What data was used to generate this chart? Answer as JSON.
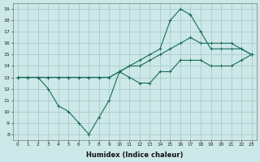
{
  "xlabel": "Humidex (Indice chaleur)",
  "ylabel": "",
  "x_ticks": [
    0,
    1,
    2,
    3,
    4,
    5,
    6,
    7,
    8,
    9,
    10,
    11,
    12,
    13,
    14,
    15,
    16,
    17,
    18,
    19,
    20,
    21,
    22,
    23
  ],
  "ylim": [
    7.5,
    19.5
  ],
  "xlim": [
    -0.5,
    23.5
  ],
  "bg_color": "#cce8e8",
  "grid_color": "#aacccc",
  "line_color": "#1a6b5a",
  "series": [
    {
      "x": [
        0,
        1,
        2,
        3,
        4,
        5,
        6,
        7,
        8,
        9,
        10,
        11,
        12,
        13,
        14,
        15,
        16,
        17,
        18,
        19,
        20,
        21,
        22,
        23
      ],
      "y": [
        13,
        13,
        13,
        12,
        10.5,
        10.0,
        9.0,
        8.0,
        9.5,
        11.0,
        13.5,
        13.0,
        12.5,
        12.5,
        13.5,
        13.5,
        14.5,
        14.5,
        14.5,
        14.0,
        14.0,
        14.0,
        14.5,
        15.0
      ]
    },
    {
      "x": [
        0,
        1,
        2,
        3,
        4,
        5,
        6,
        7,
        8,
        9,
        10,
        11,
        12,
        13,
        14,
        15,
        16,
        17,
        18,
        19,
        20,
        21,
        22,
        23
      ],
      "y": [
        13,
        13,
        13,
        13,
        13,
        13,
        13,
        13,
        13,
        13,
        13.5,
        14.0,
        14.0,
        14.5,
        15.0,
        15.5,
        16.0,
        16.5,
        16.0,
        16.0,
        16.0,
        16.0,
        15.5,
        15.0
      ]
    },
    {
      "x": [
        0,
        1,
        2,
        3,
        4,
        5,
        6,
        7,
        8,
        9,
        10,
        11,
        12,
        13,
        14,
        15,
        16,
        17,
        18,
        19,
        20,
        21,
        22,
        23
      ],
      "y": [
        13,
        13,
        13,
        13,
        13,
        13,
        13,
        13,
        13,
        13,
        13.5,
        14.0,
        14.5,
        15.0,
        15.5,
        18.0,
        19.0,
        18.5,
        17.0,
        15.5,
        15.5,
        15.5,
        15.5,
        15.0
      ]
    }
  ]
}
